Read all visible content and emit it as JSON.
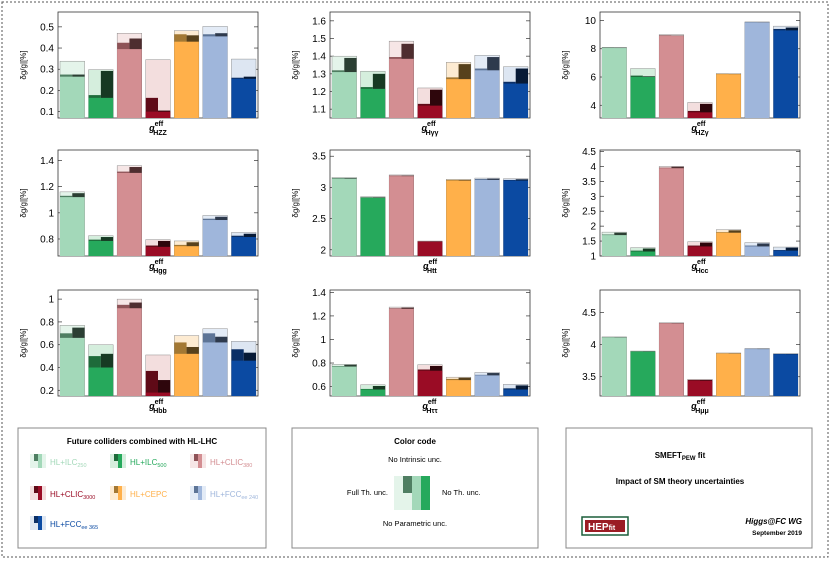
{
  "colliders": [
    {
      "key": "ilc250",
      "label": "HL+ILC",
      "sub": "250",
      "colors": [
        "#e4f4ea",
        "#a3d8b9",
        "#4f7e62",
        "#2b3f33"
      ]
    },
    {
      "key": "ilc500",
      "label": "HL+ILC",
      "sub": "500",
      "colors": [
        "#d5eedd",
        "#26a95c",
        "#1e6b3a",
        "#173a23"
      ]
    },
    {
      "key": "clic380",
      "label": "HL+CLIC",
      "sub": "380",
      "colors": [
        "#f6e6e6",
        "#d38e92",
        "#8e5357",
        "#4e2d2f"
      ]
    },
    {
      "key": "clic3000",
      "label": "HL+CLIC",
      "sub": "3000",
      "colors": [
        "#f3dede",
        "#9a0c25",
        "#5f0a17",
        "#2e060c"
      ]
    },
    {
      "key": "cepc",
      "label": "HL+CEPC",
      "sub": "",
      "colors": [
        "#fdebd2",
        "#ffb04a",
        "#a37833",
        "#57411c"
      ]
    },
    {
      "key": "fcc240",
      "label": "HL+FCC",
      "sub": "ee 240",
      "colors": [
        "#e3ebf6",
        "#9fb6db",
        "#5d7496",
        "#2e3a4d"
      ]
    },
    {
      "key": "fcc365",
      "label": "HL+FCC",
      "sub": "ee 365",
      "colors": [
        "#dde6f2",
        "#0b4aa2",
        "#0b2f66",
        "#071a36"
      ]
    }
  ],
  "chart_data": [
    {
      "type": "bar",
      "xlabel_main": "g",
      "xlabel_sup": "eff",
      "xlabel_sub": "HZZ",
      "ylabel": "δg/g|[%]",
      "ylim": [
        0.07,
        0.57
      ],
      "yticks": [
        0.1,
        0.2,
        0.3,
        0.4,
        0.5
      ],
      "bars": [
        {
          "collider": "ilc250",
          "full": 0.338,
          "noth": 0.265,
          "noint": 0.275,
          "nopar": 0.275
        },
        {
          "collider": "ilc500",
          "full": 0.298,
          "noth": 0.165,
          "noint": 0.178,
          "nopar": 0.292
        },
        {
          "collider": "clic380",
          "full": 0.47,
          "noth": 0.395,
          "noint": 0.425,
          "nopar": 0.445
        },
        {
          "collider": "clic3000",
          "full": 0.345,
          "noth": 0.1,
          "noint": 0.165,
          "nopar": 0.105
        },
        {
          "collider": "cepc",
          "full": 0.482,
          "noth": 0.43,
          "noint": 0.465,
          "nopar": 0.46
        },
        {
          "collider": "fcc240",
          "full": 0.502,
          "noth": 0.455,
          "noint": 0.465,
          "nopar": 0.47
        },
        {
          "collider": "fcc365",
          "full": 0.348,
          "noth": 0.255,
          "noint": 0.26,
          "nopar": 0.265
        }
      ]
    },
    {
      "type": "bar",
      "xlabel_main": "g",
      "xlabel_sup": "eff",
      "xlabel_sub": "Hγγ",
      "ylabel": "δg/g|[%]",
      "ylim": [
        1.05,
        1.65
      ],
      "yticks": [
        1.1,
        1.2,
        1.3,
        1.4,
        1.5,
        1.6
      ],
      "bars": [
        {
          "collider": "ilc250",
          "full": 1.4,
          "noth": 1.31,
          "noint": 1.32,
          "nopar": 1.39
        },
        {
          "collider": "ilc500",
          "full": 1.315,
          "noth": 1.215,
          "noint": 1.225,
          "nopar": 1.3
        },
        {
          "collider": "clic380",
          "full": 1.485,
          "noth": 1.385,
          "noint": 1.395,
          "nopar": 1.47
        },
        {
          "collider": "clic3000",
          "full": 1.22,
          "noth": 1.12,
          "noint": 1.13,
          "nopar": 1.21
        },
        {
          "collider": "cepc",
          "full": 1.365,
          "noth": 1.27,
          "noint": 1.28,
          "nopar": 1.355
        },
        {
          "collider": "fcc240",
          "full": 1.405,
          "noth": 1.32,
          "noint": 1.33,
          "nopar": 1.395
        },
        {
          "collider": "fcc365",
          "full": 1.34,
          "noth": 1.245,
          "noint": 1.255,
          "nopar": 1.33
        }
      ]
    },
    {
      "type": "bar",
      "xlabel_main": "g",
      "xlabel_sup": "eff",
      "xlabel_sub": "HZγ",
      "ylabel": "δg/g|[%]",
      "ylim": [
        3.1,
        10.6
      ],
      "yticks": [
        4,
        6,
        8,
        10
      ],
      "bars": [
        {
          "collider": "ilc250",
          "full": 8.1,
          "noth": 8.05,
          "noint": 8.08,
          "nopar": 8.07
        },
        {
          "collider": "ilc500",
          "full": 6.6,
          "noth": 6.0,
          "noint": 6.1,
          "nopar": 6.05
        },
        {
          "collider": "clic380",
          "full": 9.0,
          "noth": 8.9,
          "noint": 8.95,
          "nopar": 8.93
        },
        {
          "collider": "clic3000",
          "full": 4.2,
          "noth": 3.5,
          "noint": 3.6,
          "nopar": 4.1
        },
        {
          "collider": "cepc",
          "full": 6.25,
          "noth": 6.2,
          "noint": 6.22,
          "nopar": 6.21
        },
        {
          "collider": "fcc240",
          "full": 9.9,
          "noth": 9.85,
          "noint": 9.88,
          "nopar": 9.87
        },
        {
          "collider": "fcc365",
          "full": 9.6,
          "noth": 9.3,
          "noint": 9.4,
          "nopar": 9.5
        }
      ]
    },
    {
      "type": "bar",
      "xlabel_main": "g",
      "xlabel_sup": "eff",
      "xlabel_sub": "Hgg",
      "ylabel": "δg/g|[%]",
      "ylim": [
        0.67,
        1.48
      ],
      "yticks": [
        0.8,
        1.0,
        1.2,
        1.4
      ],
      "bars": [
        {
          "collider": "ilc250",
          "full": 1.16,
          "noth": 1.12,
          "noint": 1.13,
          "nopar": 1.15
        },
        {
          "collider": "ilc500",
          "full": 0.825,
          "noth": 0.785,
          "noint": 0.795,
          "nopar": 0.815
        },
        {
          "collider": "clic380",
          "full": 1.36,
          "noth": 1.305,
          "noint": 1.315,
          "nopar": 1.35
        },
        {
          "collider": "clic3000",
          "full": 0.795,
          "noth": 0.74,
          "noint": 0.75,
          "nopar": 0.785
        },
        {
          "collider": "cepc",
          "full": 0.785,
          "noth": 0.745,
          "noint": 0.755,
          "nopar": 0.775
        },
        {
          "collider": "fcc240",
          "full": 0.98,
          "noth": 0.945,
          "noint": 0.955,
          "nopar": 0.97
        },
        {
          "collider": "fcc365",
          "full": 0.85,
          "noth": 0.815,
          "noint": 0.825,
          "nopar": 0.84
        }
      ]
    },
    {
      "type": "bar",
      "xlabel_main": "g",
      "xlabel_sup": "eff",
      "xlabel_sub": "Htt",
      "ylabel": "δg/g|[%]",
      "ylim": [
        1.9,
        3.6
      ],
      "yticks": [
        2.0,
        2.5,
        3.0,
        3.5
      ],
      "bars": [
        {
          "collider": "ilc250",
          "full": 3.16,
          "noth": 3.14,
          "noint": 3.15,
          "nopar": 3.15
        },
        {
          "collider": "ilc500",
          "full": 2.85,
          "noth": 2.83,
          "noint": 2.84,
          "nopar": 2.84
        },
        {
          "collider": "clic380",
          "full": 3.2,
          "noth": 3.18,
          "noint": 3.19,
          "nopar": 3.19
        },
        {
          "collider": "clic3000",
          "full": 2.14,
          "noth": 2.13,
          "noint": 2.135,
          "nopar": 2.135
        },
        {
          "collider": "cepc",
          "full": 3.13,
          "noth": 3.11,
          "noint": 3.12,
          "nopar": 3.12
        },
        {
          "collider": "fcc240",
          "full": 3.15,
          "noth": 3.12,
          "noint": 3.135,
          "nopar": 3.14
        },
        {
          "collider": "fcc365",
          "full": 3.14,
          "noth": 3.11,
          "noint": 3.12,
          "nopar": 3.13
        }
      ]
    },
    {
      "type": "bar",
      "xlabel_main": "g",
      "xlabel_sup": "eff",
      "xlabel_sub": "Hcc",
      "ylabel": "δg/g|[%]",
      "ylim": [
        1.0,
        4.55
      ],
      "yticks": [
        1.0,
        1.5,
        2.0,
        2.5,
        3.0,
        3.5,
        4.0,
        4.5
      ],
      "bars": [
        {
          "collider": "ilc250",
          "full": 1.8,
          "noth": 1.7,
          "noint": 1.72,
          "nopar": 1.78
        },
        {
          "collider": "ilc500",
          "full": 1.28,
          "noth": 1.15,
          "noint": 1.18,
          "nopar": 1.25
        },
        {
          "collider": "clic380",
          "full": 4.0,
          "noth": 3.94,
          "noint": 3.96,
          "nopar": 3.99
        },
        {
          "collider": "clic3000",
          "full": 1.48,
          "noth": 1.32,
          "noint": 1.35,
          "nopar": 1.45
        },
        {
          "collider": "cepc",
          "full": 1.88,
          "noth": 1.78,
          "noint": 1.8,
          "nopar": 1.86
        },
        {
          "collider": "fcc240",
          "full": 1.45,
          "noth": 1.32,
          "noint": 1.35,
          "nopar": 1.42
        },
        {
          "collider": "fcc365",
          "full": 1.3,
          "noth": 1.18,
          "noint": 1.2,
          "nopar": 1.28
        }
      ]
    },
    {
      "type": "bar",
      "xlabel_main": "g",
      "xlabel_sup": "eff",
      "xlabel_sub": "Hbb",
      "ylabel": "δg/g|[%]",
      "ylim": [
        0.15,
        1.08
      ],
      "yticks": [
        0.2,
        0.4,
        0.6,
        0.8,
        1.0
      ],
      "bars": [
        {
          "collider": "ilc250",
          "full": 0.77,
          "noth": 0.66,
          "noint": 0.7,
          "nopar": 0.75
        },
        {
          "collider": "ilc500",
          "full": 0.6,
          "noth": 0.4,
          "noint": 0.5,
          "nopar": 0.52
        },
        {
          "collider": "clic380",
          "full": 1.0,
          "noth": 0.92,
          "noint": 0.95,
          "nopar": 0.97
        },
        {
          "collider": "clic3000",
          "full": 0.51,
          "noth": 0.18,
          "noint": 0.37,
          "nopar": 0.29
        },
        {
          "collider": "cepc",
          "full": 0.68,
          "noth": 0.52,
          "noint": 0.62,
          "nopar": 0.58
        },
        {
          "collider": "fcc240",
          "full": 0.74,
          "noth": 0.62,
          "noint": 0.7,
          "nopar": 0.67
        },
        {
          "collider": "fcc365",
          "full": 0.63,
          "noth": 0.46,
          "noint": 0.56,
          "nopar": 0.53
        }
      ]
    },
    {
      "type": "bar",
      "xlabel_main": "g",
      "xlabel_sup": "eff",
      "xlabel_sub": "Hττ",
      "ylabel": "δg/g|[%]",
      "ylim": [
        0.52,
        1.42
      ],
      "yticks": [
        0.6,
        0.8,
        1.0,
        1.2,
        1.4
      ],
      "bars": [
        {
          "collider": "ilc250",
          "full": 0.79,
          "noth": 0.77,
          "noint": 0.775,
          "nopar": 0.785
        },
        {
          "collider": "ilc500",
          "full": 0.615,
          "noth": 0.575,
          "noint": 0.58,
          "nopar": 0.605
        },
        {
          "collider": "clic380",
          "full": 1.275,
          "noth": 1.26,
          "noint": 1.265,
          "nopar": 1.27
        },
        {
          "collider": "clic3000",
          "full": 0.785,
          "noth": 0.735,
          "noint": 0.745,
          "nopar": 0.775
        },
        {
          "collider": "cepc",
          "full": 0.68,
          "noth": 0.655,
          "noint": 0.665,
          "nopar": 0.675
        },
        {
          "collider": "fcc240",
          "full": 0.72,
          "noth": 0.695,
          "noint": 0.7,
          "nopar": 0.715
        },
        {
          "collider": "fcc365",
          "full": 0.62,
          "noth": 0.575,
          "noint": 0.585,
          "nopar": 0.61
        }
      ]
    },
    {
      "type": "bar",
      "xlabel_main": "g",
      "xlabel_sup": "eff",
      "xlabel_sub": "Hμμ",
      "ylabel": "δg/g|[%]",
      "ylim": [
        3.2,
        4.85
      ],
      "yticks": [
        3.5,
        4.0,
        4.5
      ],
      "bars": [
        {
          "collider": "ilc250",
          "full": 4.12,
          "noth": 4.11,
          "noint": 4.115,
          "nopar": 4.115
        },
        {
          "collider": "ilc500",
          "full": 3.9,
          "noth": 3.89,
          "noint": 3.895,
          "nopar": 3.895
        },
        {
          "collider": "clic380",
          "full": 4.34,
          "noth": 4.33,
          "noint": 4.335,
          "nopar": 4.335
        },
        {
          "collider": "clic3000",
          "full": 3.46,
          "noth": 3.44,
          "noint": 3.45,
          "nopar": 3.45
        },
        {
          "collider": "cepc",
          "full": 3.87,
          "noth": 3.86,
          "noint": 3.865,
          "nopar": 3.865
        },
        {
          "collider": "fcc240",
          "full": 3.94,
          "noth": 3.93,
          "noint": 3.935,
          "nopar": 3.935
        },
        {
          "collider": "fcc365",
          "full": 3.86,
          "noth": 3.85,
          "noint": 3.855,
          "nopar": 3.855
        }
      ]
    }
  ],
  "legend": {
    "title": "Future colliders combined with HL-LHC"
  },
  "color_code": {
    "title": "Color code",
    "top": "No Intrinsic unc.",
    "left": "Full Th. unc.",
    "right": "No Th. unc.",
    "bottom": "No Parametric unc."
  },
  "info": {
    "title_main": "SMEFT",
    "title_sub": "PEW",
    "title_rest": " fit",
    "subtitle": "Impact of SM theory uncertainties",
    "logo_text_a": "HEP",
    "logo_text_b": "fit",
    "group": "Higgs@FC WG",
    "date": "September 2019"
  }
}
